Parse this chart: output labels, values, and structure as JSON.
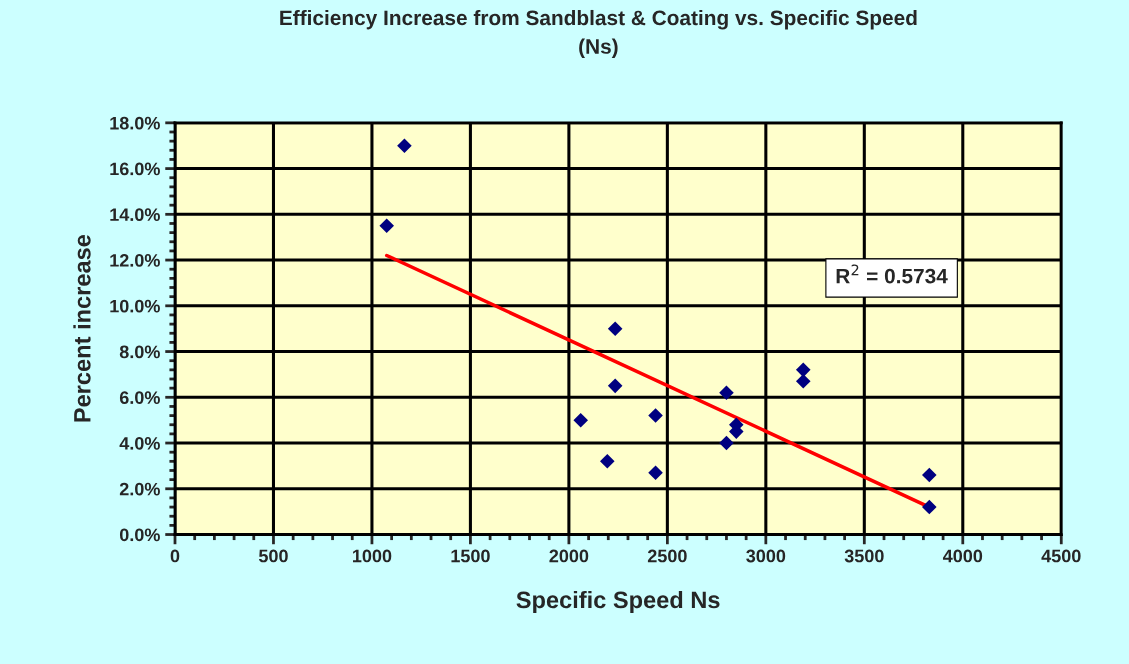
{
  "chart_data": {
    "type": "scatter",
    "title": "Efficiency Increase from Sandblast & Coating vs. Specific Speed\n(Ns)",
    "xlabel": "Specific Speed Ns",
    "ylabel": "Percent increase",
    "annotations": [
      "R$^{2}$ = 0.5734"
    ],
    "series": [
      {
        "color": "#000080",
        "marker": "diamond",
        "x": [
          1165,
          1075,
          2235,
          2235,
          2060,
          2195,
          2800,
          2800,
          2850,
          2850,
          2440,
          2440,
          3190,
          3190,
          3830,
          3830
        ],
        "values": [
          17.0,
          13.5,
          9.0,
          6.5,
          5.0,
          3.2,
          6.2,
          4.0,
          4.8,
          4.5,
          5.2,
          2.7,
          7.2,
          6.7,
          2.6,
          1.2
        ]
      },
      {
        "type": "line",
        "color": "#ff0000",
        "marker": "none",
        "line_style": "solid",
        "x": [
          1075,
          3830
        ],
        "values": [
          12.2,
          1.2
        ]
      }
    ],
    "xlim": [
      0,
      4500
    ],
    "xticks": [
      0,
      500,
      1000,
      1500,
      2000,
      2500,
      3000,
      3500,
      4000,
      4500
    ],
    "ylim": [
      0,
      18
    ],
    "yticks": [
      {
        "value": 0,
        "label": "0.0%"
      },
      {
        "value": 2,
        "label": "2.0%"
      },
      {
        "value": 4,
        "label": "4.0%"
      },
      {
        "value": 6,
        "label": "6.0%"
      },
      {
        "value": 8,
        "label": "8.0%"
      },
      {
        "value": 10,
        "label": "10.0%"
      },
      {
        "value": 12,
        "label": "12.0%"
      },
      {
        "value": 14,
        "label": "14.0%"
      },
      {
        "value": 16,
        "label": "16.0%"
      },
      {
        "value": 18,
        "label": "18.0%"
      }
    ],
    "grid": true,
    "legend": false
  }
}
